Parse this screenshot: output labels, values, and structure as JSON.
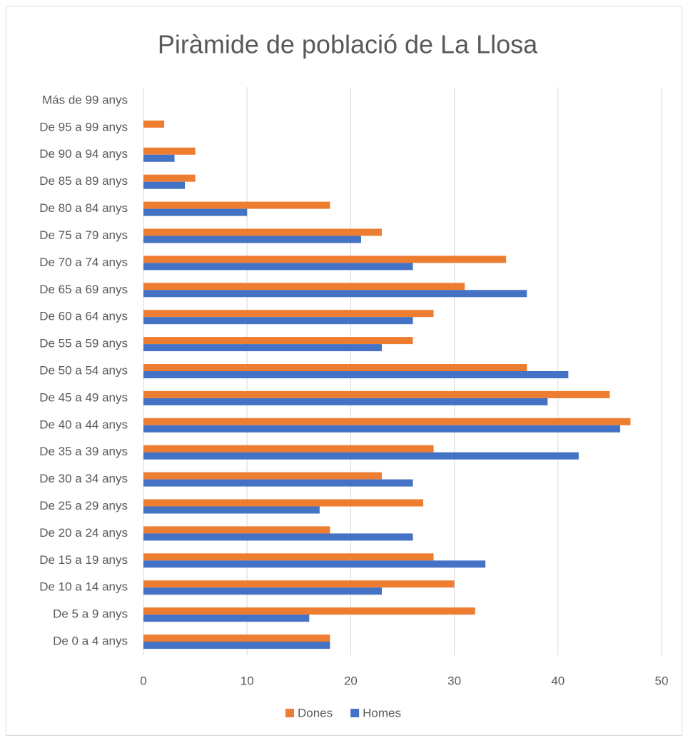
{
  "chart_data": {
    "type": "hbar",
    "title": "Piràmide de població de La Llosa",
    "categories": [
      "Más de 99 anys",
      "De 95 a 99 anys",
      "De 90 a 94 anys",
      "De 85 a 89 anys",
      "De 80 a 84 anys",
      "De 75 a 79 anys",
      "De 70 a 74 anys",
      "De 65 a 69 anys",
      "De 60 a 64 anys",
      "De 55 a 59 anys",
      "De 50 a 54 anys",
      "De 45 a 49 anys",
      "De 40 a 44 anys",
      "De 35 a 39 anys",
      "De 30 a 34 anys",
      "De 25 a 29 anys",
      "De 20 a 24 anys",
      "De 15 a 19 anys",
      "De 10 a 14 anys",
      "De 5 a 9 anys",
      "De 0 a 4 anys"
    ],
    "series": [
      {
        "name": "Dones",
        "color": "#ed7d31",
        "values": [
          0,
          2,
          5,
          5,
          18,
          23,
          35,
          31,
          28,
          26,
          37,
          45,
          47,
          28,
          23,
          27,
          18,
          28,
          30,
          32,
          18
        ]
      },
      {
        "name": "Homes",
        "color": "#4472c4",
        "values": [
          0,
          0,
          3,
          4,
          10,
          21,
          26,
          37,
          26,
          23,
          41,
          39,
          46,
          42,
          26,
          17,
          26,
          33,
          23,
          16,
          18
        ]
      }
    ],
    "xlim": [
      0,
      50
    ],
    "xticks": [
      0,
      10,
      20,
      30,
      40,
      50
    ],
    "grid": true,
    "legend": "bottom"
  }
}
